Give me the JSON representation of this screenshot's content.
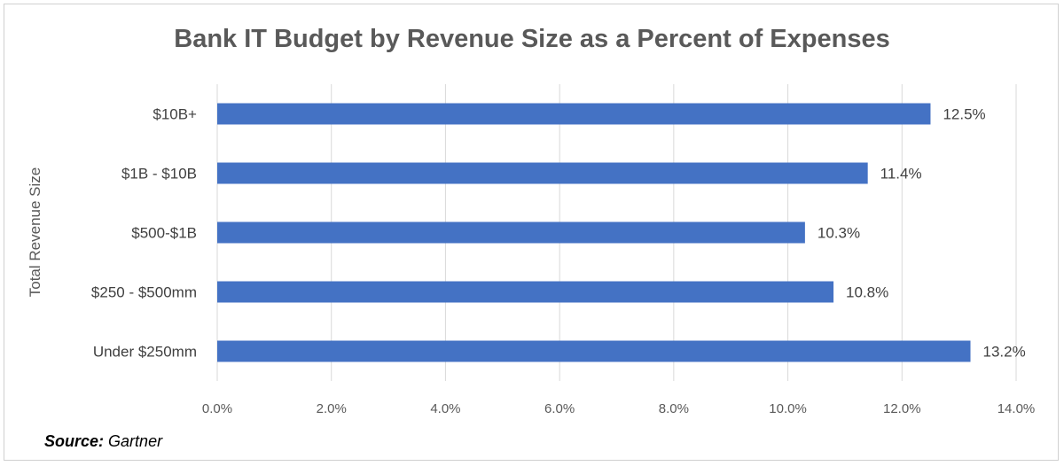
{
  "chart_data": {
    "type": "bar",
    "orientation": "horizontal",
    "title": "Bank IT Budget by Revenue Size as a Percent of Expenses",
    "ylabel": "Total Revenue Size",
    "xlabel": "",
    "categories": [
      "$10B+",
      "$1B - $10B",
      "$500-$1B",
      "$250 - $500mm",
      "Under $250mm"
    ],
    "values": [
      12.5,
      11.4,
      10.3,
      10.8,
      13.2
    ],
    "data_labels": [
      "12.5%",
      "11.4%",
      "10.3%",
      "10.8%",
      "13.2%"
    ],
    "xlim": [
      0,
      14
    ],
    "xticks": [
      0,
      2,
      4,
      6,
      8,
      10,
      12,
      14
    ],
    "xtick_labels": [
      "0.0%",
      "2.0%",
      "4.0%",
      "6.0%",
      "8.0%",
      "10.0%",
      "12.0%",
      "14.0%"
    ],
    "grid": "vertical",
    "bar_color": "#4472C4"
  },
  "source": {
    "label": "Source:",
    "text": "Gartner"
  }
}
